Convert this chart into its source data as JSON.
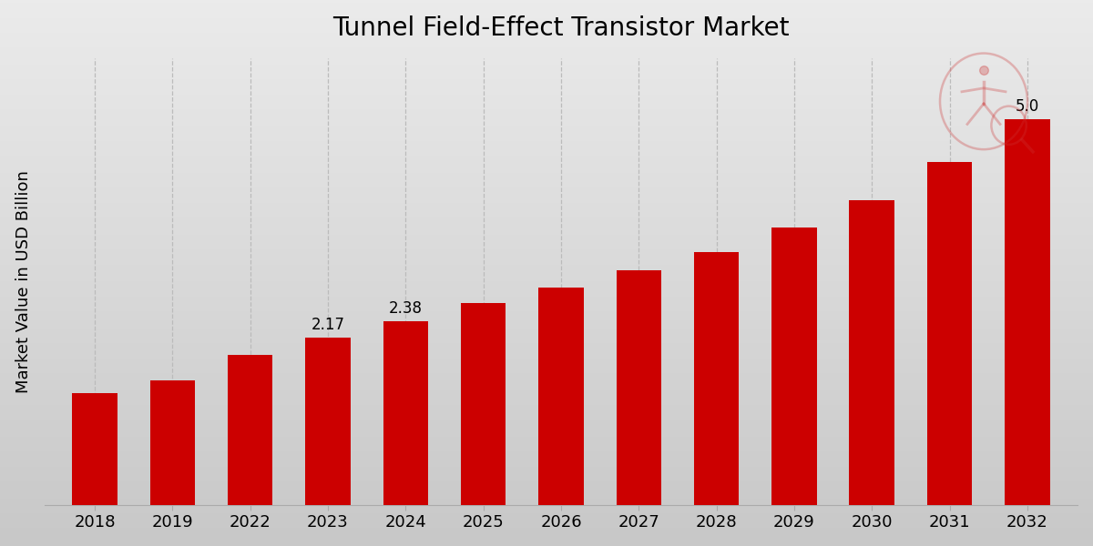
{
  "title": "Tunnel Field-Effect Transistor Market",
  "ylabel": "Market Value in USD Billion",
  "categories": [
    "2018",
    "2019",
    "2022",
    "2023",
    "2024",
    "2025",
    "2026",
    "2027",
    "2028",
    "2029",
    "2030",
    "2031",
    "2032"
  ],
  "values": [
    1.45,
    1.62,
    1.95,
    2.17,
    2.38,
    2.62,
    2.82,
    3.05,
    3.28,
    3.6,
    3.95,
    4.45,
    5.0
  ],
  "bar_color": "#cc0000",
  "bar_labels": {
    "2023": "2.17",
    "2024": "2.38",
    "2032": "5.0"
  },
  "background_color_top": "#f0f0f0",
  "background_color_bottom": "#d8d8d8",
  "ylim": [
    0,
    5.8
  ],
  "title_fontsize": 20,
  "label_fontsize": 13,
  "tick_fontsize": 13,
  "annotation_fontsize": 12,
  "grid_color": "#bbbbbb"
}
